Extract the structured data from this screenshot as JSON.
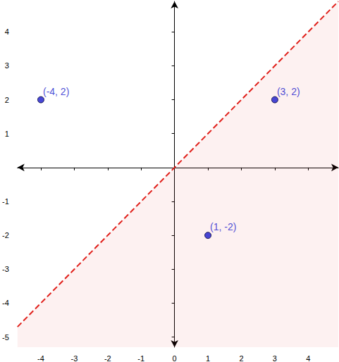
{
  "chart_data": {
    "type": "scatter",
    "xlim": [
      -4.7,
      4.9
    ],
    "ylim": [
      -5.3,
      4.9
    ],
    "xticks": [
      -4,
      -3,
      -2,
      -1,
      0,
      1,
      2,
      3,
      4
    ],
    "yticks": [
      -5,
      -4,
      -3,
      -2,
      -1,
      1,
      2,
      3,
      4
    ],
    "grid": false,
    "data_labels": true,
    "series": [
      {
        "type": "area",
        "x": [
          -4.7,
          4.9
        ],
        "values": [
          -4.7,
          4.9
        ],
        "color": "#e0201b",
        "line_style": "dashed"
      },
      {
        "type": "scatter",
        "x": [
          -4,
          3,
          1
        ],
        "values": [
          2,
          2,
          -2
        ],
        "value_labels": [
          "(-4, 2)",
          "(3, 2)",
          "(1, -2)"
        ],
        "color": "#1a1acc",
        "marker": "circle"
      }
    ]
  }
}
